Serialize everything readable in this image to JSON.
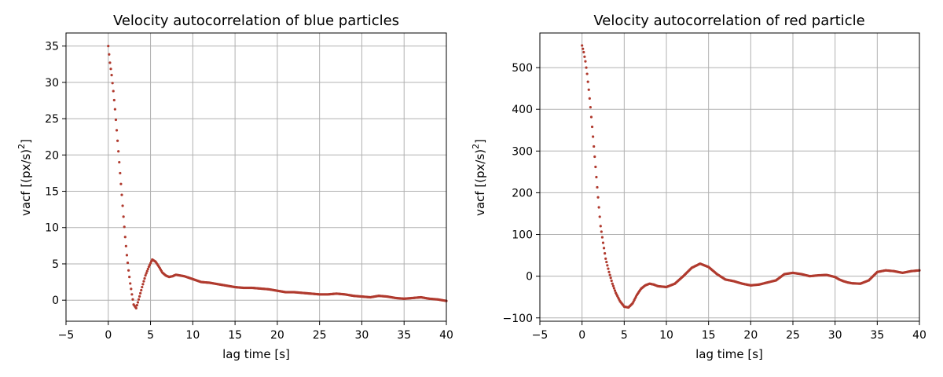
{
  "chart_data": [
    {
      "type": "scatter",
      "title": "Velocity autocorrelation of blue particles",
      "xlabel": "lag time [s]",
      "ylabel_main": "vacf [(px/s)",
      "ylabel_sup": "2",
      "ylabel_end": "]",
      "xlim": [
        -5,
        40
      ],
      "ylim": [
        -2.9,
        36.8
      ],
      "xticks": [
        -5,
        0,
        5,
        10,
        15,
        20,
        25,
        30,
        35,
        40
      ],
      "yticks": [
        0,
        5,
        10,
        15,
        20,
        25,
        30,
        35
      ],
      "grid": true,
      "marker_color": "#b03a2e",
      "series": [
        {
          "x": [
            0,
            0.2,
            0.4,
            0.6,
            0.8,
            1.0,
            1.2,
            1.4,
            1.6,
            1.8,
            2.0,
            2.2,
            2.4,
            2.6,
            2.8,
            3.0,
            3.3,
            3.6,
            4.0,
            4.4,
            4.8,
            5.2,
            5.6,
            6.0,
            6.4,
            6.8,
            7.2,
            7.6,
            8.0,
            9.0,
            10.0,
            11.0,
            12.0,
            13.0,
            14.0,
            15.0,
            16.0,
            17.0,
            18.0,
            19.0,
            20.0,
            21.0,
            22.0,
            23.0,
            24.0,
            25.0,
            26.0,
            27.0,
            28.0,
            29.0,
            30.0,
            31.0,
            32.0,
            33.0,
            34.0,
            35.0,
            36.0,
            37.0,
            38.0,
            39.0,
            40.0
          ],
          "y": [
            35.0,
            32.7,
            31.0,
            28.8,
            26.3,
            23.4,
            20.5,
            17.5,
            14.5,
            11.5,
            8.7,
            6.2,
            4.1,
            2.3,
            0.8,
            -0.6,
            -1.1,
            0.1,
            1.8,
            3.4,
            4.6,
            5.6,
            5.3,
            4.6,
            3.8,
            3.4,
            3.2,
            3.3,
            3.5,
            3.3,
            2.9,
            2.5,
            2.4,
            2.2,
            2.0,
            1.8,
            1.7,
            1.7,
            1.6,
            1.5,
            1.3,
            1.1,
            1.1,
            1.0,
            0.9,
            0.8,
            0.8,
            0.9,
            0.8,
            0.6,
            0.5,
            0.4,
            0.6,
            0.5,
            0.3,
            0.2,
            0.3,
            0.4,
            0.2,
            0.1,
            -0.1
          ]
        }
      ]
    },
    {
      "type": "scatter",
      "title": "Velocity autocorrelation of red particle",
      "xlabel": "lag time [s]",
      "ylabel_main": "vacf [(px/s)",
      "ylabel_sup": "2",
      "ylabel_end": "]",
      "xlim": [
        -5,
        40
      ],
      "ylim": [
        -108,
        583
      ],
      "xticks": [
        -5,
        0,
        5,
        10,
        15,
        20,
        25,
        30,
        35,
        40
      ],
      "yticks": [
        -100,
        0,
        100,
        200,
        300,
        400,
        500
      ],
      "grid": true,
      "marker_color": "#b03a2e",
      "series": [
        {
          "x": [
            0,
            0.2,
            0.4,
            0.6,
            0.8,
            1.0,
            1.2,
            1.4,
            1.6,
            1.8,
            2.0,
            2.2,
            2.5,
            2.8,
            3.2,
            3.6,
            4.0,
            4.5,
            5.0,
            5.5,
            6.0,
            6.5,
            7.0,
            7.5,
            8.0,
            8.5,
            9.0,
            10.0,
            11.0,
            12.0,
            13.0,
            14.0,
            15.0,
            16.0,
            17.0,
            18.0,
            19.0,
            20.0,
            21.0,
            22.0,
            23.0,
            24.0,
            25.0,
            26.0,
            27.0,
            28.0,
            29.0,
            30.0,
            30.5,
            31.0,
            31.5,
            32.0,
            33.0,
            34.0,
            35.0,
            35.5,
            36.0,
            37.0,
            38.0,
            39.0,
            40.0
          ],
          "y": [
            553,
            537,
            515,
            485,
            447,
            405,
            358,
            311,
            262,
            213,
            165,
            120,
            80,
            42,
            10,
            -18,
            -40,
            -60,
            -73,
            -75,
            -65,
            -45,
            -30,
            -22,
            -18,
            -20,
            -24,
            -26,
            -18,
            0,
            20,
            30,
            22,
            5,
            -8,
            -12,
            -18,
            -22,
            -20,
            -15,
            -10,
            5,
            8,
            5,
            0,
            2,
            3,
            -2,
            -8,
            -12,
            -15,
            -17,
            -18,
            -10,
            10,
            12,
            14,
            12,
            8,
            12,
            14
          ]
        }
      ]
    }
  ]
}
